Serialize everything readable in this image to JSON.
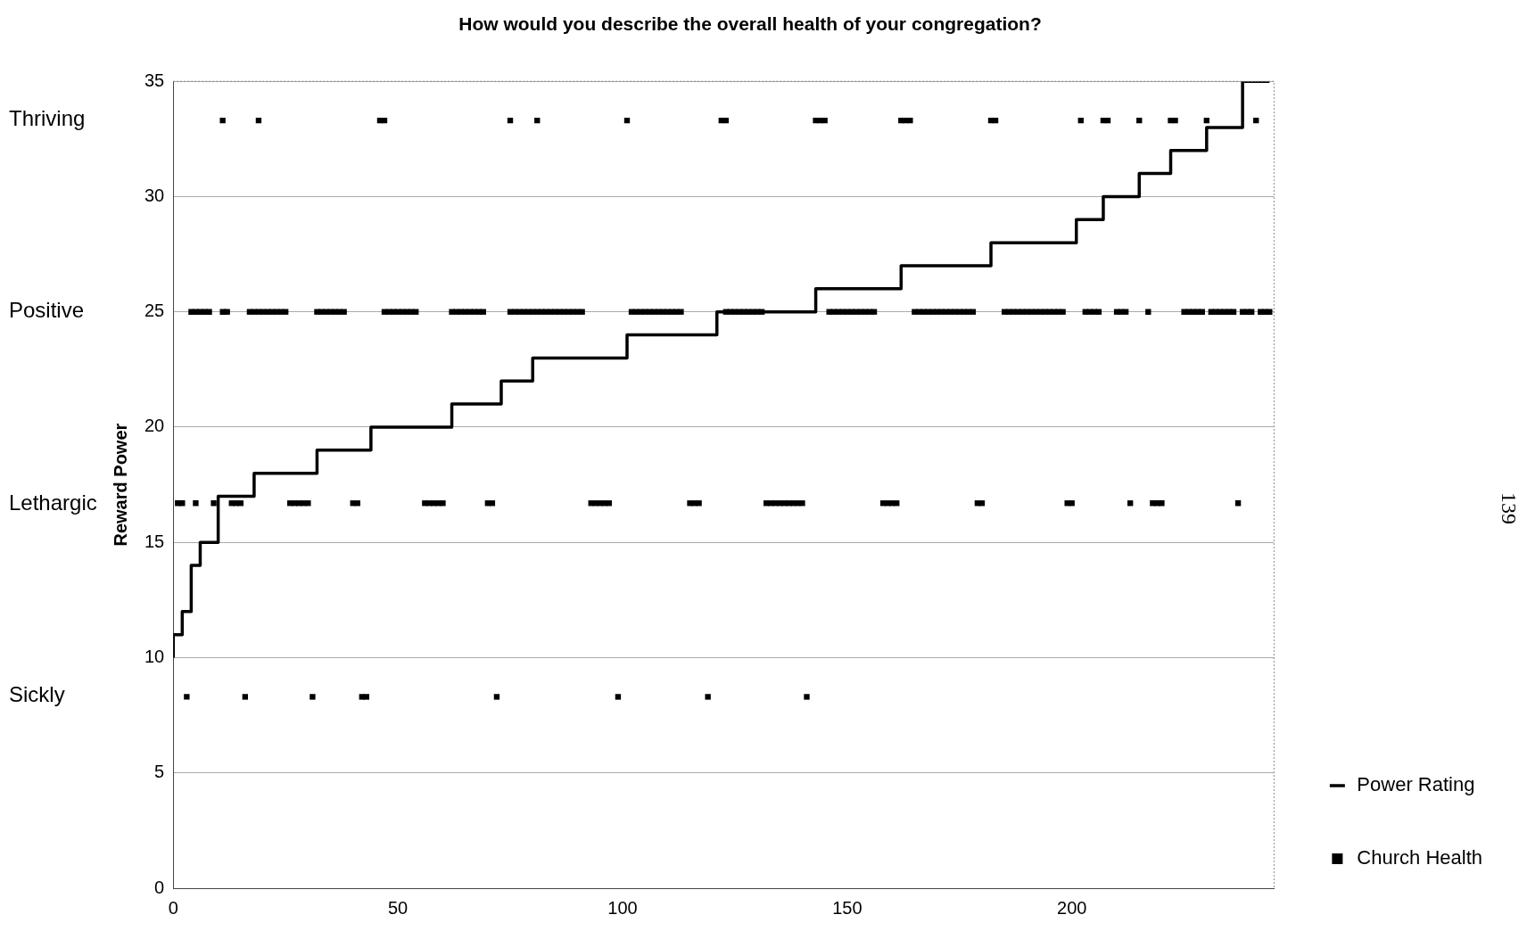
{
  "chart_data": {
    "type": "scatter",
    "title": "How would you describe the overall health of your congregation?",
    "ylabel": "Reward Power",
    "xlim": [
      0,
      245
    ],
    "xticks": [
      0,
      50,
      100,
      150,
      200
    ],
    "ylim": [
      0,
      35
    ],
    "yticks": [
      0,
      5,
      10,
      15,
      20,
      25,
      30,
      35
    ],
    "grid": "y",
    "legend": "bottom right",
    "series": [
      {
        "name": "Power Rating",
        "type": "step",
        "color": "#000000",
        "x": [
          0,
          2,
          4,
          6,
          10,
          18,
          32,
          44,
          62,
          73,
          80,
          101,
          121,
          143,
          162,
          182,
          201,
          207,
          215,
          222,
          230,
          238,
          241,
          244
        ],
        "values": [
          10,
          11,
          12,
          14,
          15,
          17,
          18,
          19,
          20,
          21,
          22,
          23,
          24,
          25,
          26,
          27,
          28,
          29,
          30,
          31,
          32,
          33,
          35,
          35
        ]
      },
      {
        "name": "Church Health",
        "marker": "square",
        "color": "#000000",
        "x": [
          11,
          19,
          46,
          47,
          75,
          81,
          101,
          122,
          123,
          143,
          144,
          145,
          162,
          163,
          164,
          182,
          183,
          202,
          207,
          208,
          215,
          222,
          223,
          230,
          241,
          4,
          5,
          6,
          7,
          8,
          11,
          12,
          17,
          18,
          19,
          20,
          21,
          22,
          23,
          24,
          25,
          32,
          33,
          34,
          35,
          36,
          37,
          38,
          47,
          48,
          49,
          50,
          51,
          52,
          53,
          54,
          62,
          63,
          64,
          65,
          66,
          67,
          68,
          69,
          75,
          76,
          77,
          78,
          79,
          80,
          81,
          82,
          83,
          84,
          85,
          86,
          87,
          88,
          89,
          90,
          91,
          102,
          103,
          104,
          105,
          106,
          107,
          108,
          109,
          110,
          111,
          112,
          113,
          123,
          124,
          125,
          126,
          127,
          128,
          129,
          130,
          131,
          146,
          147,
          148,
          149,
          150,
          151,
          152,
          153,
          154,
          155,
          156,
          165,
          166,
          167,
          168,
          169,
          170,
          171,
          172,
          173,
          174,
          175,
          176,
          177,
          178,
          185,
          186,
          187,
          188,
          189,
          190,
          191,
          192,
          193,
          194,
          195,
          196,
          197,
          198,
          203,
          204,
          205,
          206,
          210,
          211,
          212,
          217,
          225,
          226,
          227,
          228,
          229,
          231,
          232,
          233,
          234,
          235,
          236,
          238,
          239,
          240,
          242,
          243,
          244,
          1,
          2,
          5,
          9,
          13,
          14,
          15,
          26,
          27,
          28,
          29,
          30,
          40,
          41,
          56,
          57,
          58,
          59,
          60,
          70,
          71,
          93,
          94,
          95,
          96,
          97,
          115,
          116,
          117,
          132,
          133,
          134,
          135,
          136,
          137,
          138,
          139,
          140,
          158,
          159,
          160,
          161,
          179,
          180,
          199,
          200,
          213,
          218,
          219,
          220,
          237,
          3,
          16,
          31,
          42,
          43,
          72,
          99,
          119,
          141
        ],
        "values": [
          33.3,
          33.3,
          33.3,
          33.3,
          33.3,
          33.3,
          33.3,
          33.3,
          33.3,
          33.3,
          33.3,
          33.3,
          33.3,
          33.3,
          33.3,
          33.3,
          33.3,
          33.3,
          33.3,
          33.3,
          33.3,
          33.3,
          33.3,
          33.3,
          33.3,
          25,
          25,
          25,
          25,
          25,
          25,
          25,
          25,
          25,
          25,
          25,
          25,
          25,
          25,
          25,
          25,
          25,
          25,
          25,
          25,
          25,
          25,
          25,
          25,
          25,
          25,
          25,
          25,
          25,
          25,
          25,
          25,
          25,
          25,
          25,
          25,
          25,
          25,
          25,
          25,
          25,
          25,
          25,
          25,
          25,
          25,
          25,
          25,
          25,
          25,
          25,
          25,
          25,
          25,
          25,
          25,
          25,
          25,
          25,
          25,
          25,
          25,
          25,
          25,
          25,
          25,
          25,
          25,
          25,
          25,
          25,
          25,
          25,
          25,
          25,
          25,
          25,
          25,
          25,
          25,
          25,
          25,
          25,
          25,
          25,
          25,
          25,
          25,
          25,
          25,
          25,
          25,
          25,
          25,
          25,
          25,
          25,
          25,
          25,
          25,
          25,
          25,
          25,
          25,
          25,
          25,
          25,
          25,
          25,
          25,
          25,
          25,
          25,
          25,
          25,
          25,
          25,
          25,
          25,
          25,
          25,
          25,
          25,
          25,
          25,
          25,
          25,
          25,
          25,
          25,
          25,
          25,
          25,
          25,
          25,
          25,
          25,
          25,
          25,
          25,
          25,
          16.7,
          16.7,
          16.7,
          16.7,
          16.7,
          16.7,
          16.7,
          16.7,
          16.7,
          16.7,
          16.7,
          16.7,
          16.7,
          16.7,
          16.7,
          16.7,
          16.7,
          16.7,
          16.7,
          16.7,
          16.7,
          16.7,
          16.7,
          16.7,
          16.7,
          16.7,
          16.7,
          16.7,
          16.7,
          16.7,
          16.7,
          16.7,
          16.7,
          16.7,
          16.7,
          16.7,
          16.7,
          16.7,
          16.7,
          16.7,
          16.7,
          16.7,
          16.7,
          16.7,
          16.7,
          16.7,
          16.7,
          16.7,
          16.7,
          16.7,
          16.7,
          8.3,
          8.3,
          8.3,
          8.3,
          8.3,
          8.3,
          8.3,
          8.3,
          8.3
        ]
      }
    ],
    "y2_categories": [
      "Thriving",
      "Positive",
      "Lethargic",
      "Sickly"
    ],
    "annotations": [
      "139"
    ]
  }
}
